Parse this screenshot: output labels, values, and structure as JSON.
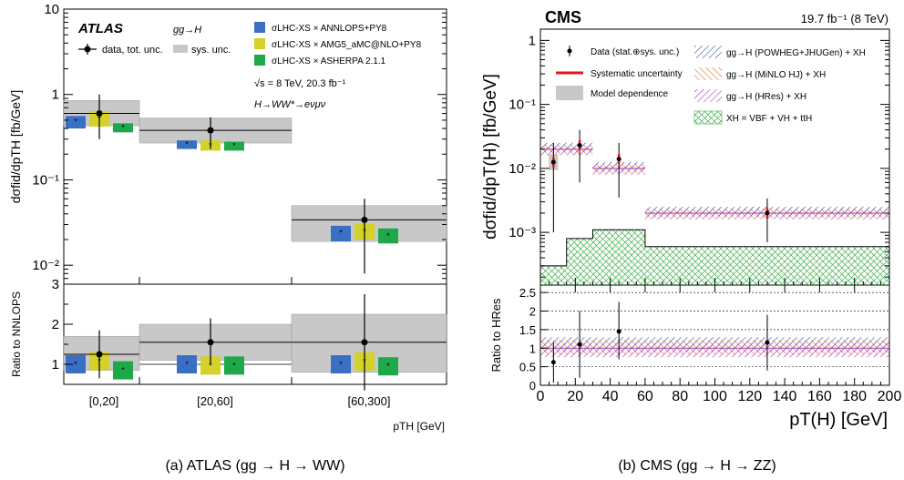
{
  "chart_data": [
    {
      "type": "scatter",
      "panel_caption": "(a) ATLAS (gg → H → WW)",
      "experiment": "ATLAS",
      "process_label": "gg→H",
      "energy_label": "√s = 8 TeV,  20.3 fb⁻¹",
      "decay_label": "H→WW*→eνμν",
      "ylabel": "dσfid/dpTH [fb/GeV]",
      "ratio_ylabel": "Ratio to NNLOPS",
      "xlabel": "pTH [GeV]",
      "y_scale": "log",
      "ylim": [
        0.006,
        10
      ],
      "ratio_ylim": [
        0.5,
        3
      ],
      "y_ticks": [
        "10⁻²",
        "10⁻¹",
        "1",
        "10"
      ],
      "ratio_ticks": [
        "1",
        "2",
        "3"
      ],
      "categories": [
        "[0,20]",
        "[20,60]",
        "[60,300]"
      ],
      "legend": [
        {
          "name": "data, tot. unc.",
          "kind": "data"
        },
        {
          "name": "sys. unc.",
          "kind": "sys"
        },
        {
          "name": "σLHC-XS × ANNLOPS+PY8",
          "kind": "pred",
          "color": "#3a6fc4"
        },
        {
          "name": "σLHC-XS × AMG5_aMC@NLO+PY8",
          "kind": "pred",
          "color": "#d4d12a"
        },
        {
          "name": "σLHC-XS × ASHERPA 2.1.1",
          "kind": "pred",
          "color": "#1fa84a"
        }
      ],
      "data": {
        "values": [
          0.6,
          0.38,
          0.034
        ],
        "err_low": [
          0.3,
          0.15,
          0.026
        ],
        "err_high": [
          0.4,
          0.16,
          0.026
        ],
        "sys_low": [
          0.43,
          0.27,
          0.019
        ],
        "sys_high": [
          0.85,
          0.53,
          0.05
        ]
      },
      "series": [
        {
          "name": "NNLOPS+PY8",
          "values": [
            0.48,
            0.26,
            0.024
          ],
          "band": [
            0.4,
            0.56,
            0.23,
            0.29,
            0.019,
            0.029
          ],
          "ratio": [
            1.0,
            1.0,
            1.0
          ]
        },
        {
          "name": "MG5_aMC@NLO+PY8",
          "values": [
            0.52,
            0.25,
            0.025
          ],
          "band": [
            0.42,
            0.64,
            0.22,
            0.29,
            0.02,
            0.031
          ],
          "ratio": [
            1.08,
            0.97,
            1.07
          ]
        },
        {
          "name": "SHERPA 2.1.1",
          "values": [
            0.41,
            0.25,
            0.022
          ],
          "band": [
            0.36,
            0.46,
            0.22,
            0.28,
            0.018,
            0.027
          ],
          "ratio": [
            0.85,
            0.97,
            0.95
          ]
        }
      ],
      "ratio_data": {
        "values": [
          1.25,
          1.55,
          1.55
        ],
        "err_low": [
          0.6,
          0.55,
          1.2
        ],
        "err_high": [
          0.6,
          0.6,
          1.2
        ],
        "sys_low": [
          0.85,
          1.1,
          0.8
        ],
        "sys_high": [
          1.7,
          2.0,
          2.25
        ]
      }
    },
    {
      "type": "scatter",
      "panel_caption": "(b) CMS (gg → H → ZZ)",
      "experiment": "CMS",
      "lumi_label": "19.7 fb⁻¹ (8 TeV)",
      "ylabel": "dσfid/dpT(H) [fb/GeV]",
      "ratio_ylabel": "Ratio to HRes",
      "xlabel": "pT(H) [GeV]",
      "y_scale": "log",
      "ylim": [
        0.00015,
        1.5
      ],
      "ratio_ylim": [
        0,
        2.7
      ],
      "xlim": [
        0,
        200
      ],
      "x_ticks": [
        0,
        20,
        40,
        60,
        80,
        100,
        120,
        140,
        160,
        180,
        200
      ],
      "y_ticks": [
        "10⁻³",
        "10⁻²",
        "10⁻¹",
        "1"
      ],
      "ratio_ticks": [
        "0",
        "0.5",
        "1",
        "1.5",
        "2",
        "2.5"
      ],
      "bins": [
        [
          0,
          15
        ],
        [
          15,
          30
        ],
        [
          30,
          60
        ],
        [
          60,
          200
        ]
      ],
      "legend": [
        {
          "name": "Data (stat.⊕sys. unc.)",
          "kind": "data"
        },
        {
          "name": "Systematic uncertainty",
          "kind": "syst",
          "color": "#e8141b"
        },
        {
          "name": "Model dependence",
          "kind": "model",
          "color": "#c8c8c8"
        },
        {
          "name": "gg→H (POWHEG+JHUGen) + XH",
          "kind": "hatch",
          "color": "#2b4fa8"
        },
        {
          "name": "gg→H (MiNLO HJ) + XH",
          "kind": "hatch",
          "color": "#e06d1a"
        },
        {
          "name": "gg→H (HRes) + XH",
          "kind": "hatch",
          "color": "#a23bc0"
        },
        {
          "name": "XH = VBF + VH + ttH",
          "kind": "cross",
          "color": "#3fae4a"
        }
      ],
      "data": {
        "x": [
          7.5,
          22.5,
          45,
          130
        ],
        "values": [
          0.0125,
          0.023,
          0.014,
          0.002
        ],
        "err_low": [
          0.0115,
          0.017,
          0.0105,
          0.0013
        ],
        "err_high": [
          0.0125,
          0.017,
          0.011,
          0.0014
        ]
      },
      "prediction": [
        0.02,
        0.02,
        0.01,
        0.002
      ],
      "xh": [
        0.0003,
        0.0008,
        0.0011,
        0.0006
      ],
      "ratio_data": {
        "values": [
          0.62,
          1.1,
          1.45,
          1.15
        ],
        "err_low": [
          0.55,
          0.9,
          0.75,
          0.75
        ],
        "err_high": [
          0.55,
          0.9,
          0.8,
          0.75
        ]
      }
    }
  ]
}
